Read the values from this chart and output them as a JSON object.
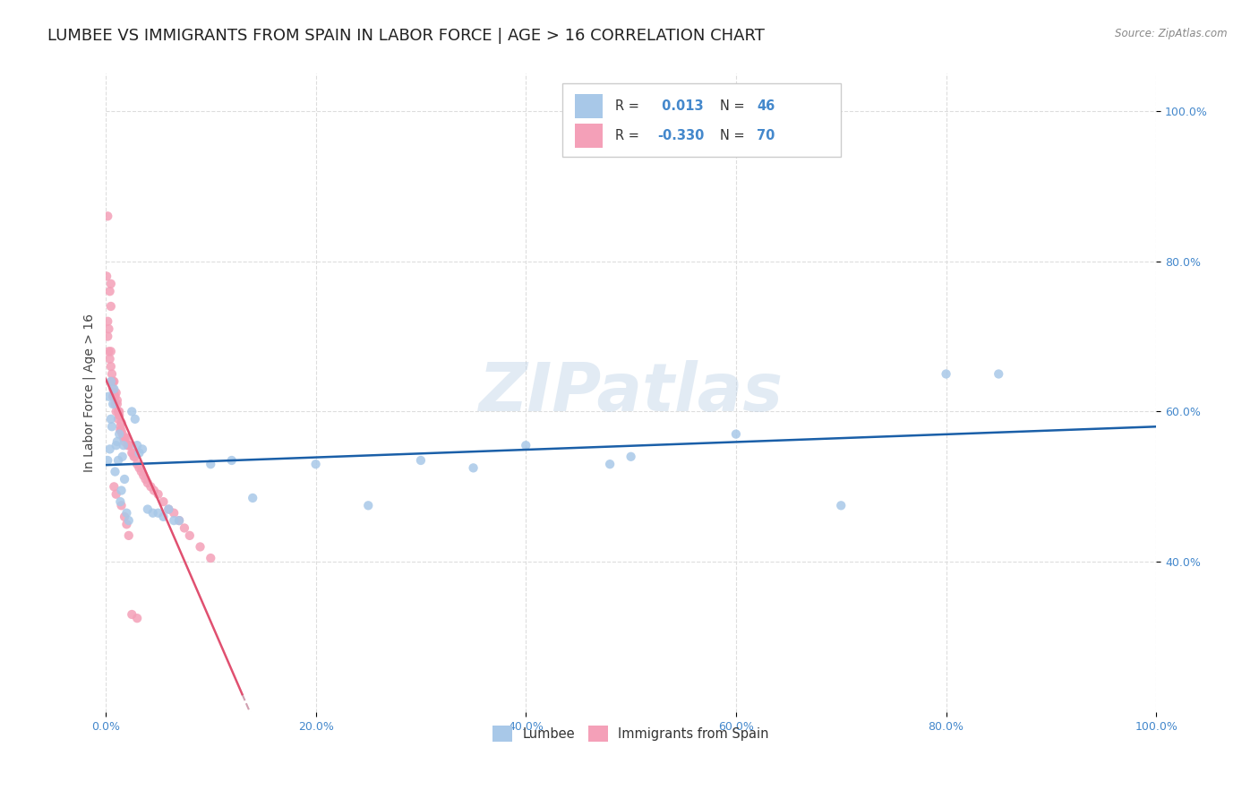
{
  "title": "LUMBEE VS IMMIGRANTS FROM SPAIN IN LABOR FORCE | AGE > 16 CORRELATION CHART",
  "source": "Source: ZipAtlas.com",
  "ylabel": "In Labor Force | Age > 16",
  "watermark": "ZIPatlas",
  "xlim": [
    0.0,
    1.0
  ],
  "ylim": [
    0.2,
    1.05
  ],
  "lumbee_color": "#a8c8e8",
  "spain_color": "#f4a0b8",
  "lumbee_line_color": "#1a5fa8",
  "spain_line_color": "#e05070",
  "dashed_line_color": "#d0a0b0",
  "R_lumbee": 0.013,
  "N_lumbee": 46,
  "R_spain": -0.33,
  "N_spain": 70,
  "legend_labels": [
    "Lumbee",
    "Immigrants from Spain"
  ],
  "background_color": "#ffffff",
  "grid_color": "#dddddd",
  "axis_color": "#4488cc",
  "title_fontsize": 13,
  "label_fontsize": 10,
  "tick_fontsize": 9,
  "lumbee_x": [
    0.002,
    0.003,
    0.004,
    0.005,
    0.005,
    0.006,
    0.007,
    0.008,
    0.009,
    0.01,
    0.011,
    0.012,
    0.013,
    0.014,
    0.015,
    0.016,
    0.017,
    0.018,
    0.02,
    0.022,
    0.025,
    0.028,
    0.03,
    0.032,
    0.035,
    0.04,
    0.045,
    0.05,
    0.055,
    0.06,
    0.065,
    0.07,
    0.1,
    0.12,
    0.14,
    0.2,
    0.25,
    0.3,
    0.35,
    0.4,
    0.48,
    0.5,
    0.6,
    0.7,
    0.8,
    0.85
  ],
  "lumbee_y": [
    0.535,
    0.62,
    0.55,
    0.64,
    0.59,
    0.58,
    0.61,
    0.63,
    0.52,
    0.555,
    0.56,
    0.535,
    0.57,
    0.48,
    0.495,
    0.54,
    0.555,
    0.51,
    0.465,
    0.455,
    0.6,
    0.59,
    0.555,
    0.545,
    0.55,
    0.47,
    0.465,
    0.465,
    0.46,
    0.47,
    0.455,
    0.455,
    0.53,
    0.535,
    0.485,
    0.53,
    0.475,
    0.535,
    0.525,
    0.555,
    0.53,
    0.54,
    0.57,
    0.475,
    0.65,
    0.65
  ],
  "spain_x": [
    0.001,
    0.002,
    0.002,
    0.003,
    0.003,
    0.004,
    0.004,
    0.005,
    0.005,
    0.005,
    0.006,
    0.006,
    0.007,
    0.007,
    0.007,
    0.008,
    0.008,
    0.009,
    0.009,
    0.01,
    0.01,
    0.011,
    0.011,
    0.012,
    0.012,
    0.013,
    0.013,
    0.014,
    0.014,
    0.015,
    0.015,
    0.016,
    0.017,
    0.018,
    0.018,
    0.02,
    0.021,
    0.022,
    0.023,
    0.025,
    0.026,
    0.027,
    0.028,
    0.03,
    0.032,
    0.034,
    0.036,
    0.038,
    0.04,
    0.043,
    0.046,
    0.05,
    0.055,
    0.06,
    0.065,
    0.07,
    0.075,
    0.08,
    0.09,
    0.1,
    0.002,
    0.005,
    0.008,
    0.01,
    0.015,
    0.018,
    0.02,
    0.022,
    0.025,
    0.03
  ],
  "spain_y": [
    0.78,
    0.72,
    0.7,
    0.71,
    0.68,
    0.76,
    0.67,
    0.68,
    0.66,
    0.74,
    0.65,
    0.64,
    0.64,
    0.63,
    0.62,
    0.64,
    0.625,
    0.62,
    0.61,
    0.625,
    0.6,
    0.615,
    0.61,
    0.6,
    0.59,
    0.6,
    0.595,
    0.58,
    0.575,
    0.585,
    0.575,
    0.57,
    0.565,
    0.565,
    0.56,
    0.565,
    0.555,
    0.555,
    0.555,
    0.545,
    0.545,
    0.54,
    0.54,
    0.53,
    0.525,
    0.52,
    0.515,
    0.51,
    0.505,
    0.5,
    0.495,
    0.49,
    0.48,
    0.47,
    0.465,
    0.455,
    0.445,
    0.435,
    0.42,
    0.405,
    0.86,
    0.77,
    0.5,
    0.49,
    0.475,
    0.46,
    0.45,
    0.435,
    0.33,
    0.325
  ]
}
